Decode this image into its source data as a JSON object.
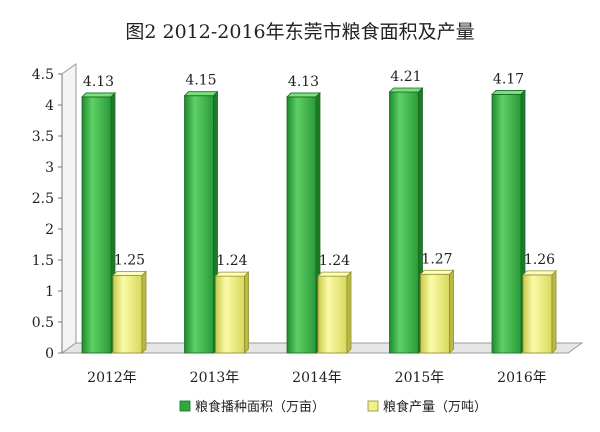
{
  "chart_data": {
    "type": "bar",
    "title": "图2 2012-2016年东莞市粮食面积及产量",
    "categories": [
      "2012年",
      "2013年",
      "2014年",
      "2015年",
      "2016年"
    ],
    "series": [
      {
        "name": "粮食播种面积（万亩）",
        "values": [
          4.13,
          4.15,
          4.13,
          4.21,
          4.17
        ],
        "labels": [
          "4.13",
          "4.15",
          "4.13",
          "4.21",
          "4.17"
        ],
        "color": "#3cb34a"
      },
      {
        "name": "粮食产量（万吨）",
        "values": [
          1.25,
          1.24,
          1.24,
          1.27,
          1.26
        ],
        "labels": [
          "1.25",
          "1.24",
          "1.24",
          "1.27",
          "1.26"
        ],
        "color": "#e8e87a"
      }
    ],
    "ylim": [
      0,
      4.5
    ],
    "yticks": [
      "0",
      "0.5",
      "1",
      "1.5",
      "2",
      "2.5",
      "3",
      "3.5",
      "4",
      "4.5"
    ],
    "grid": false,
    "legend_position": "bottom"
  }
}
